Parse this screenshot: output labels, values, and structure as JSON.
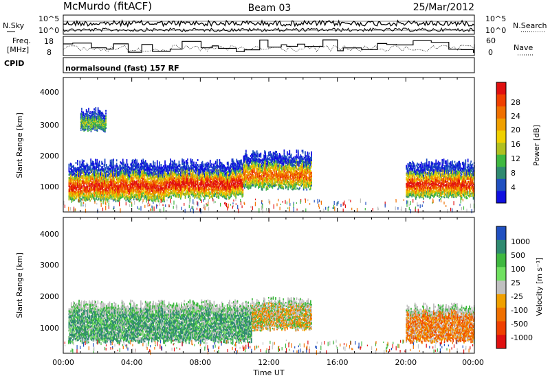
{
  "header": {
    "title_left": "McMurdo (fitACF)",
    "title_center": "Beam 03",
    "title_right": "25/Mar/2012"
  },
  "noise_panel": {
    "left_label": "N.Sky",
    "right_label": "N.Search",
    "ticks": [
      "10^5",
      "10^0"
    ]
  },
  "freq_panel": {
    "left_label_line1": "Freq.",
    "left_label_line2": "[MHz]",
    "left_ticks": [
      "18",
      "8"
    ],
    "right_label": "Nave",
    "right_ticks": [
      "60",
      "0"
    ]
  },
  "cpid_panel": {
    "label": "CPID",
    "program": "normalsound (fast) 157 RF"
  },
  "power_panel": {
    "ylabel": "Slant Range [km]",
    "yticks": [
      "4000",
      "3000",
      "2000",
      "1000"
    ],
    "colorbar_label": "Power [dB]",
    "colorbar_ticks": [
      "28",
      "24",
      "20",
      "16",
      "12",
      "8",
      "4"
    ],
    "colors": [
      "#1010e0",
      "#2050c0",
      "#2f8a70",
      "#3fb840",
      "#b0c020",
      "#f0d000",
      "#f0a000",
      "#f07000",
      "#f04000",
      "#e01010"
    ]
  },
  "velocity_panel": {
    "ylabel": "Slant Range [km]",
    "yticks": [
      "4000",
      "3000",
      "2000",
      "1000"
    ],
    "colorbar_label": "Velocity [m s⁻¹]",
    "colorbar_ticks": [
      "1000",
      "500",
      "100",
      "25",
      "-25",
      "-100",
      "-500",
      "-1000"
    ],
    "colors": [
      "#2050c0",
      "#2f8a70",
      "#3fb840",
      "#70e060",
      "#c0c0c0",
      "#f0a000",
      "#f07000",
      "#f04000",
      "#e01010"
    ]
  },
  "xaxis": {
    "label": "Time UT",
    "ticks": [
      "00:00",
      "04:00",
      "08:00",
      "12:00",
      "16:00",
      "20:00",
      "00:00"
    ]
  },
  "chart_data": [
    {
      "type": "heatmap",
      "title": "",
      "xlabel": "Time UT",
      "ylabel": "Slant Range [km]",
      "xlim": [
        0,
        24
      ],
      "ylim": [
        200,
        4600
      ],
      "colorbar": {
        "label": "Power [dB]",
        "range": [
          0,
          30
        ]
      },
      "regions": [
        {
          "t_start": 0.3,
          "t_end": 6.0,
          "r_min": 600,
          "r_max": 1800,
          "peak_db": 26
        },
        {
          "t_start": 6.0,
          "t_end": 10.5,
          "r_min": 700,
          "r_max": 1800,
          "peak_db": 28
        },
        {
          "t_start": 10.5,
          "t_end": 14.5,
          "r_min": 1000,
          "r_max": 2100,
          "peak_db": 22
        },
        {
          "t_start": 20.0,
          "t_end": 24.0,
          "r_min": 700,
          "r_max": 1800,
          "peak_db": 26
        },
        {
          "t_start": 1.0,
          "t_end": 2.5,
          "r_min": 2900,
          "r_max": 3500,
          "peak_db": 10
        }
      ]
    },
    {
      "type": "heatmap",
      "title": "",
      "xlabel": "Time UT",
      "ylabel": "Slant Range [km]",
      "xlim": [
        0,
        24
      ],
      "ylim": [
        200,
        4600
      ],
      "colorbar": {
        "label": "Velocity [m s⁻¹]",
        "range": [
          -1000,
          1000
        ]
      },
      "regions": [
        {
          "t_start": 0.3,
          "t_end": 6.0,
          "r_min": 600,
          "r_max": 1800,
          "velocity": 300
        },
        {
          "t_start": 6.0,
          "t_end": 11.0,
          "r_min": 600,
          "r_max": 1800,
          "velocity": 400
        },
        {
          "t_start": 11.0,
          "t_end": 14.5,
          "r_min": 1000,
          "r_max": 1900,
          "velocity": -100
        },
        {
          "t_start": 20.0,
          "t_end": 24.0,
          "r_min": 600,
          "r_max": 1700,
          "velocity": -300
        }
      ]
    }
  ]
}
